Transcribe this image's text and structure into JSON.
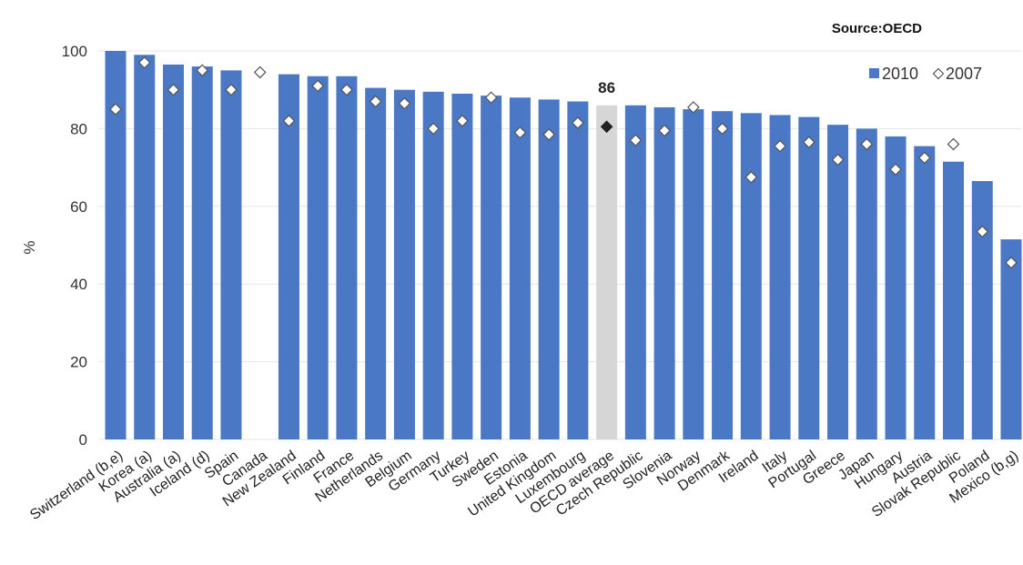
{
  "source": "Source:OECD",
  "colors": {
    "bar_2010": "#4a78c4",
    "highlight_bar": "#d6d6d6",
    "marker_2007": "#ffffff",
    "highlight_marker": "#222222"
  },
  "chart_data": {
    "type": "bar",
    "ylabel": "%",
    "ylim": [
      0,
      100
    ],
    "yticks": [
      0,
      20,
      40,
      60,
      80,
      100
    ],
    "legend": {
      "placement": "top-right",
      "entries": [
        "2010",
        "2007"
      ]
    },
    "highlight": {
      "category": "OECD average",
      "label": "86"
    },
    "categories": [
      "Switzerland (b,e)",
      "Korea (a)",
      "Australia (a)",
      "Iceland (d)",
      "Spain",
      "Canada",
      "New Zealand",
      "Finland",
      "France",
      "Netherlands",
      "Belgium",
      "Germany",
      "Turkey",
      "Sweden",
      "Estonia",
      "United Kingdom",
      "Luxembourg",
      "OECD average",
      "Czech Republic",
      "Slovenia",
      "Norway",
      "Denmark",
      "Ireland",
      "Italy",
      "Portugal",
      "Greece",
      "Japan",
      "Hungary",
      "Austria",
      "Slovak Republic",
      "Poland",
      "Mexico (b,g)"
    ],
    "series": [
      {
        "name": "2010",
        "values": [
          100,
          99,
          96.5,
          96,
          95,
          0,
          94,
          93.5,
          93.5,
          90.5,
          90,
          89.5,
          89,
          88.5,
          88,
          87.5,
          87,
          86,
          86,
          85.5,
          85,
          84.5,
          84,
          83.5,
          83,
          81,
          80,
          78,
          75.5,
          71.5,
          66.5,
          51.5
        ]
      },
      {
        "name": "2007",
        "values": [
          85,
          97,
          90,
          95,
          90,
          94.5,
          82,
          91,
          90,
          87,
          86.5,
          80,
          82,
          88,
          79,
          78.5,
          81.5,
          80.5,
          77,
          79.5,
          85.5,
          80,
          67.5,
          75.5,
          76.5,
          72,
          76,
          69.5,
          72.5,
          76,
          53.5,
          45.5
        ]
      }
    ]
  }
}
